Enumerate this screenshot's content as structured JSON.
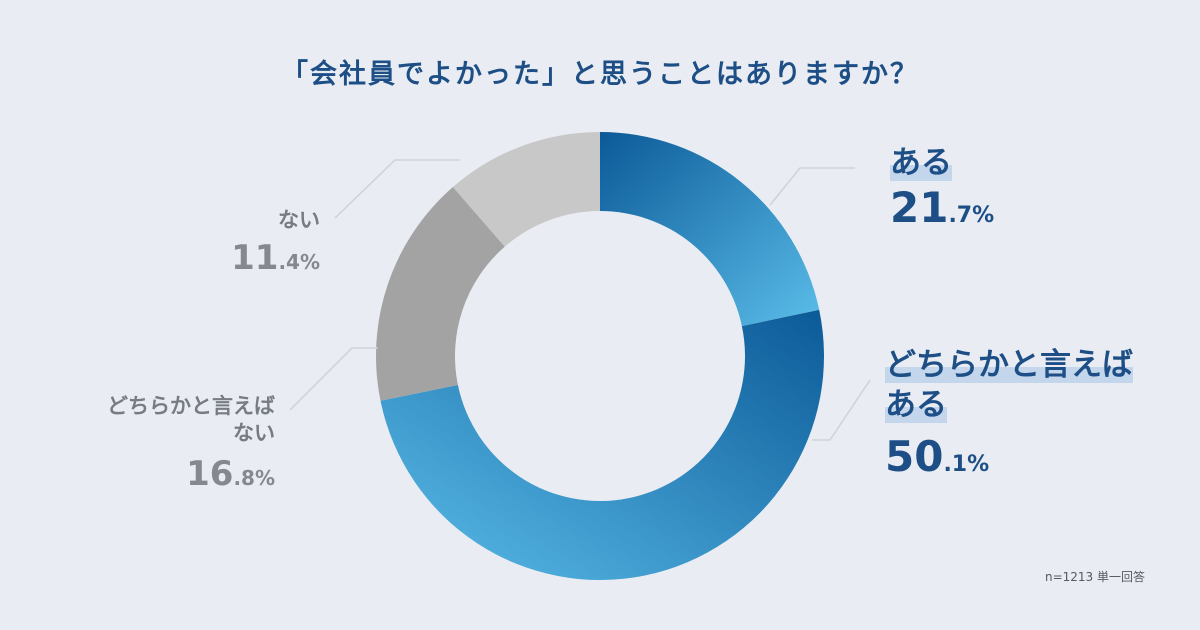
{
  "title": "「会社員でよかった」と思うことはありますか？",
  "note": "n=1213 単一回答",
  "colors": {
    "background": "#e9edf3",
    "accent_dark": "#0b5a98",
    "accent_light": "#5bbde9",
    "gray_mid": "#a3a3a3",
    "gray_light": "#c8c8c8",
    "leader": "#cfd3d9"
  },
  "chart_data": {
    "type": "pie",
    "donut": true,
    "title": "「会社員でよかった」と思うことはありますか？",
    "slices": [
      {
        "label": "ある",
        "label_lines": [
          "ある"
        ],
        "value": 21.7,
        "int": "21",
        "dec": ".7%"
      },
      {
        "label": "どちらかと言えばある",
        "label_lines": [
          "どちらかと言えば",
          "ある"
        ],
        "value": 50.1,
        "int": "50",
        "dec": ".1%"
      },
      {
        "label": "どちらかと言えばない",
        "label_lines": [
          "どちらかと言えば",
          "ない"
        ],
        "value": 16.8,
        "int": "16",
        "dec": ".8%"
      },
      {
        "label": "ない",
        "label_lines": [
          "ない"
        ],
        "value": 11.4,
        "int": "11",
        "dec": ".4%"
      }
    ]
  }
}
